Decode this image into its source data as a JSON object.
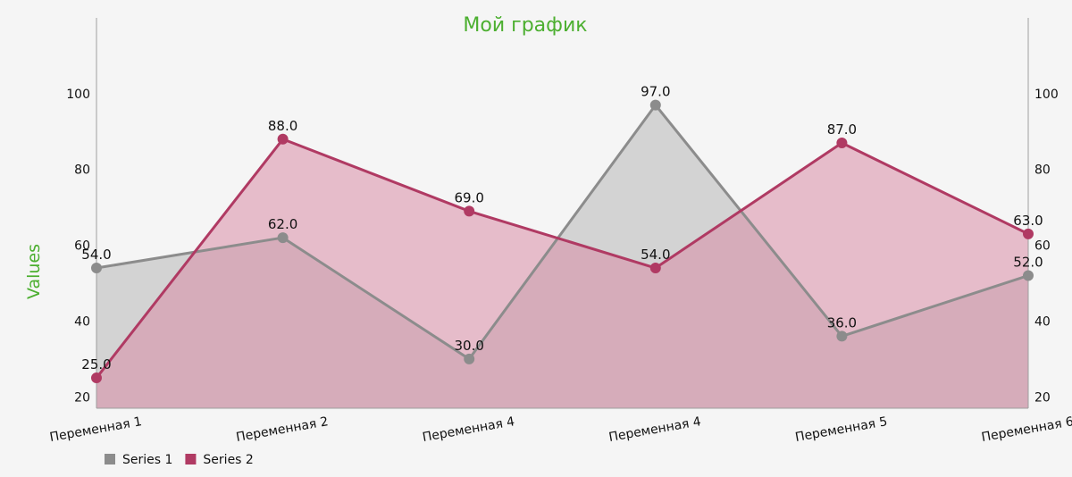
{
  "chart_data": {
    "type": "area",
    "title": "Мой график",
    "ylabel": "Values",
    "ylim": [
      17,
      120
    ],
    "yticks": [
      20,
      40,
      60,
      80,
      100
    ],
    "categories": [
      "Переменная 1",
      "Переменная 2",
      "Переменная 4",
      "Переменная 4",
      "Переменная 5",
      "Переменная 6"
    ],
    "series": [
      {
        "name": "Series 1",
        "values": [
          54.0,
          62.0,
          30.0,
          97.0,
          36.0,
          52.0
        ],
        "labels": [
          "54.0",
          "62.0",
          "30.0",
          "97.0",
          "36.0",
          "52.0"
        ]
      },
      {
        "name": "Series 2",
        "values": [
          25.0,
          88.0,
          69.0,
          54.0,
          87.0,
          63.0
        ],
        "labels": [
          "25.0",
          "88.0",
          "69.0",
          "54.0",
          "87.0",
          "63.0"
        ]
      }
    ],
    "grid": false,
    "legend": "bottom-left",
    "colors": {
      "title": "#4caf30",
      "series1_line": "#8c8c8c",
      "series1_fill": "#bdbdbd",
      "series2_line": "#b03a63",
      "series2_fill": "#d98da6",
      "axis": "#9e9e9e"
    }
  }
}
